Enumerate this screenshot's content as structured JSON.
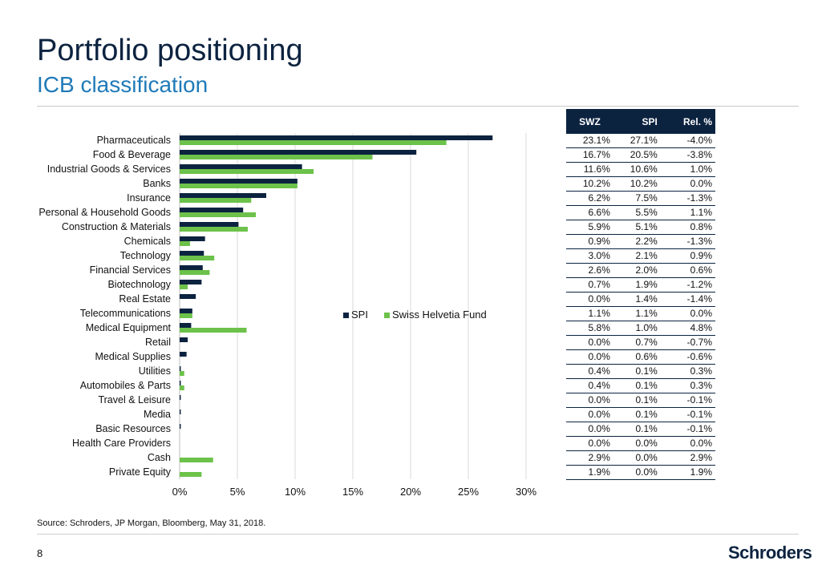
{
  "header": {
    "title": "Portfolio positioning",
    "subtitle": "ICB classification"
  },
  "footer": {
    "source": "Source: Schroders, JP Morgan, Bloomberg, May 31, 2018.",
    "page_number": "8",
    "logo_text": "Schroders"
  },
  "colors": {
    "spi": "#0c2340",
    "fund": "#6cc24a",
    "title": "#0c2340",
    "subtitle": "#1f7ab8"
  },
  "chart_data": {
    "type": "bar",
    "orientation": "horizontal",
    "categories": [
      "Pharmaceuticals",
      "Food & Beverage",
      "Industrial Goods & Services",
      "Banks",
      "Insurance",
      "Personal & Household Goods",
      "Construction & Materials",
      "Chemicals",
      "Technology",
      "Financial Services",
      "Biotechnology",
      "Real Estate",
      "Telecommunications",
      "Medical Equipment",
      "Retail",
      "Medical Supplies",
      "Utilities",
      "Automobiles & Parts",
      "Travel & Leisure",
      "Media",
      "Basic Resources",
      "Health Care Providers",
      "Cash",
      "Private Equity"
    ],
    "series": [
      {
        "name": "SPI",
        "values": [
          27.1,
          20.5,
          10.6,
          10.2,
          7.5,
          5.5,
          5.1,
          2.2,
          2.1,
          2.0,
          1.9,
          1.4,
          1.1,
          1.0,
          0.7,
          0.6,
          0.1,
          0.1,
          0.1,
          0.1,
          0.1,
          0.0,
          0.0,
          0.0
        ]
      },
      {
        "name": "Swiss Helvetia Fund",
        "values": [
          23.1,
          16.7,
          11.6,
          10.2,
          6.2,
          6.6,
          5.9,
          0.9,
          3.0,
          2.6,
          0.7,
          0.0,
          1.1,
          5.8,
          0.0,
          0.0,
          0.4,
          0.4,
          0.0,
          0.0,
          0.0,
          0.0,
          2.9,
          1.9
        ]
      }
    ],
    "xlim": [
      0,
      30
    ],
    "xticks": [
      "0%",
      "5%",
      "10%",
      "15%",
      "20%",
      "25%",
      "30%"
    ],
    "xtick_values": [
      0,
      5,
      10,
      15,
      20,
      25,
      30
    ],
    "legend": "center-right",
    "grid": true
  },
  "table": {
    "headers": [
      "SWZ",
      "SPI",
      "Rel. %"
    ],
    "rows": [
      [
        "23.1%",
        "27.1%",
        "-4.0%"
      ],
      [
        "16.7%",
        "20.5%",
        "-3.8%"
      ],
      [
        "11.6%",
        "10.6%",
        "1.0%"
      ],
      [
        "10.2%",
        "10.2%",
        "0.0%"
      ],
      [
        "6.2%",
        "7.5%",
        "-1.3%"
      ],
      [
        "6.6%",
        "5.5%",
        "1.1%"
      ],
      [
        "5.9%",
        "5.1%",
        "0.8%"
      ],
      [
        "0.9%",
        "2.2%",
        "-1.3%"
      ],
      [
        "3.0%",
        "2.1%",
        "0.9%"
      ],
      [
        "2.6%",
        "2.0%",
        "0.6%"
      ],
      [
        "0.7%",
        "1.9%",
        "-1.2%"
      ],
      [
        "0.0%",
        "1.4%",
        "-1.4%"
      ],
      [
        "1.1%",
        "1.1%",
        "0.0%"
      ],
      [
        "5.8%",
        "1.0%",
        "4.8%"
      ],
      [
        "0.0%",
        "0.7%",
        "-0.7%"
      ],
      [
        "0.0%",
        "0.6%",
        "-0.6%"
      ],
      [
        "0.4%",
        "0.1%",
        "0.3%"
      ],
      [
        "0.4%",
        "0.1%",
        "0.3%"
      ],
      [
        "0.0%",
        "0.1%",
        "-0.1%"
      ],
      [
        "0.0%",
        "0.1%",
        "-0.1%"
      ],
      [
        "0.0%",
        "0.1%",
        "-0.1%"
      ],
      [
        "0.0%",
        "0.0%",
        "0.0%"
      ],
      [
        "2.9%",
        "0.0%",
        "2.9%"
      ],
      [
        "1.9%",
        "0.0%",
        "1.9%"
      ]
    ]
  }
}
